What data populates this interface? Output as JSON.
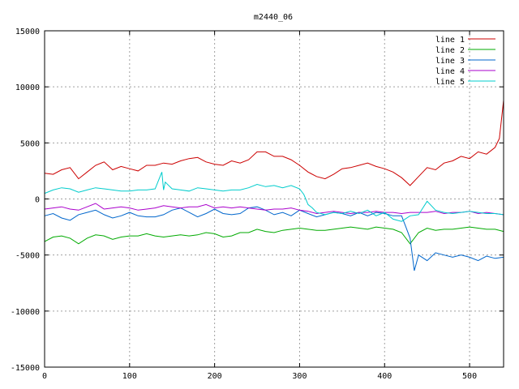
{
  "chart_data": {
    "type": "line",
    "title": "m2440_06",
    "xlabel": "",
    "ylabel": "",
    "xlim": [
      0,
      540
    ],
    "ylim": [
      -15000,
      15000
    ],
    "x_ticks": [
      0,
      100,
      200,
      300,
      400,
      500
    ],
    "y_ticks": [
      -15000,
      -10000,
      -5000,
      0,
      5000,
      10000,
      15000
    ],
    "x_tick_labels": [
      "0",
      "100",
      "200",
      "300",
      "400",
      "500"
    ],
    "y_tick_labels": [
      "-15000",
      "-10000",
      "-5000",
      "0",
      "5000",
      "10000",
      "15000"
    ],
    "grid": true,
    "legend_position": "top-right",
    "series": [
      {
        "name": "line 1",
        "color": "#cc0000",
        "x": [
          0,
          10,
          20,
          30,
          40,
          50,
          60,
          70,
          80,
          90,
          100,
          110,
          120,
          130,
          140,
          150,
          160,
          170,
          180,
          190,
          200,
          210,
          220,
          230,
          240,
          250,
          260,
          270,
          280,
          290,
          300,
          310,
          320,
          330,
          340,
          350,
          360,
          370,
          380,
          390,
          400,
          410,
          420,
          430,
          440,
          450,
          460,
          470,
          480,
          490,
          500,
          510,
          520,
          530,
          535,
          540
        ],
        "y": [
          2300,
          2200,
          2600,
          2800,
          1800,
          2400,
          3000,
          3300,
          2600,
          2900,
          2700,
          2500,
          3000,
          3000,
          3200,
          3100,
          3400,
          3600,
          3700,
          3300,
          3100,
          3000,
          3400,
          3200,
          3500,
          4200,
          4200,
          3800,
          3800,
          3500,
          3000,
          2400,
          2000,
          1800,
          2200,
          2700,
          2800,
          3000,
          3200,
          2900,
          2700,
          2400,
          1900,
          1200,
          2000,
          2800,
          2600,
          3200,
          3400,
          3800,
          3600,
          4200,
          4000,
          4600,
          5400,
          8800
        ]
      },
      {
        "name": "line 2",
        "color": "#00aa00",
        "x": [
          0,
          10,
          20,
          30,
          40,
          50,
          60,
          70,
          80,
          90,
          100,
          110,
          120,
          130,
          140,
          150,
          160,
          170,
          180,
          190,
          200,
          210,
          220,
          230,
          240,
          250,
          260,
          270,
          280,
          290,
          300,
          310,
          320,
          330,
          340,
          350,
          360,
          370,
          380,
          390,
          400,
          410,
          420,
          430,
          440,
          450,
          460,
          470,
          480,
          490,
          500,
          510,
          520,
          530,
          540
        ],
        "y": [
          -3800,
          -3400,
          -3300,
          -3500,
          -4000,
          -3500,
          -3200,
          -3300,
          -3600,
          -3400,
          -3300,
          -3300,
          -3100,
          -3300,
          -3400,
          -3300,
          -3200,
          -3300,
          -3200,
          -3000,
          -3100,
          -3400,
          -3300,
          -3000,
          -3000,
          -2700,
          -2900,
          -3000,
          -2800,
          -2700,
          -2600,
          -2700,
          -2800,
          -2800,
          -2700,
          -2600,
          -2500,
          -2600,
          -2700,
          -2500,
          -2600,
          -2700,
          -3000,
          -4000,
          -3000,
          -2600,
          -2800,
          -2700,
          -2700,
          -2600,
          -2500,
          -2600,
          -2700,
          -2700,
          -2900
        ]
      },
      {
        "name": "line 3",
        "color": "#0066cc",
        "x": [
          0,
          10,
          20,
          30,
          40,
          50,
          60,
          70,
          80,
          90,
          100,
          110,
          120,
          130,
          140,
          150,
          160,
          170,
          180,
          190,
          200,
          210,
          220,
          230,
          240,
          250,
          260,
          270,
          280,
          290,
          300,
          310,
          320,
          330,
          340,
          350,
          360,
          370,
          380,
          390,
          400,
          410,
          420,
          425,
          430,
          435,
          440,
          450,
          460,
          470,
          480,
          490,
          500,
          510,
          520,
          530,
          540
        ],
        "y": [
          -1500,
          -1300,
          -1700,
          -1900,
          -1400,
          -1200,
          -1000,
          -1400,
          -1700,
          -1500,
          -1200,
          -1500,
          -1600,
          -1600,
          -1400,
          -1000,
          -800,
          -1200,
          -1600,
          -1300,
          -900,
          -1300,
          -1400,
          -1300,
          -800,
          -700,
          -1000,
          -1400,
          -1200,
          -1500,
          -1000,
          -1300,
          -1600,
          -1400,
          -1200,
          -1300,
          -1500,
          -1200,
          -1500,
          -1200,
          -1300,
          -1500,
          -1500,
          -2500,
          -3500,
          -6400,
          -5000,
          -5500,
          -4800,
          -5000,
          -5200,
          -5000,
          -5200,
          -5500,
          -5100,
          -5300,
          -5200
        ]
      },
      {
        "name": "line 4",
        "color": "#aa00cc",
        "x": [
          0,
          10,
          20,
          30,
          40,
          50,
          60,
          70,
          80,
          90,
          100,
          110,
          120,
          130,
          140,
          150,
          160,
          170,
          180,
          190,
          200,
          210,
          220,
          230,
          240,
          250,
          260,
          270,
          280,
          290,
          300,
          310,
          320,
          330,
          340,
          350,
          360,
          370,
          380,
          390,
          400,
          410,
          420,
          430,
          440,
          450,
          460,
          470,
          480,
          490,
          500,
          510,
          520,
          530,
          540
        ],
        "y": [
          -900,
          -800,
          -700,
          -900,
          -1000,
          -700,
          -400,
          -900,
          -800,
          -700,
          -800,
          -1000,
          -900,
          -800,
          -600,
          -700,
          -800,
          -700,
          -700,
          -500,
          -800,
          -700,
          -800,
          -700,
          -800,
          -900,
          -1000,
          -900,
          -900,
          -800,
          -1000,
          -1100,
          -1300,
          -1200,
          -1100,
          -1200,
          -1300,
          -1200,
          -1200,
          -1100,
          -1200,
          -1200,
          -1300,
          -1200,
          -1200,
          -1200,
          -1100,
          -1300,
          -1200,
          -1200,
          -1100,
          -1300,
          -1200,
          -1300,
          -1400
        ]
      },
      {
        "name": "line 5",
        "color": "#00cccc",
        "x": [
          0,
          10,
          20,
          30,
          40,
          50,
          60,
          70,
          80,
          90,
          100,
          110,
          120,
          130,
          138,
          140,
          142,
          150,
          160,
          170,
          180,
          190,
          200,
          210,
          220,
          230,
          240,
          250,
          260,
          270,
          280,
          290,
          300,
          305,
          310,
          315,
          320,
          330,
          340,
          350,
          360,
          370,
          380,
          390,
          400,
          410,
          420,
          430,
          440,
          450,
          460,
          470,
          480,
          490,
          500,
          510,
          520,
          530,
          540
        ],
        "y": [
          500,
          800,
          1000,
          900,
          600,
          800,
          1000,
          900,
          800,
          700,
          700,
          800,
          800,
          900,
          2400,
          800,
          1500,
          900,
          800,
          700,
          1000,
          900,
          800,
          700,
          800,
          800,
          1000,
          1300,
          1100,
          1200,
          1000,
          1200,
          900,
          400,
          -500,
          -800,
          -1200,
          -1400,
          -1200,
          -1300,
          -1100,
          -1300,
          -1000,
          -1500,
          -1200,
          -1800,
          -2000,
          -1500,
          -1400,
          -200,
          -1000,
          -1200,
          -1300,
          -1200,
          -1100,
          -1200,
          -1300,
          -1300,
          -1400
        ]
      }
    ]
  }
}
